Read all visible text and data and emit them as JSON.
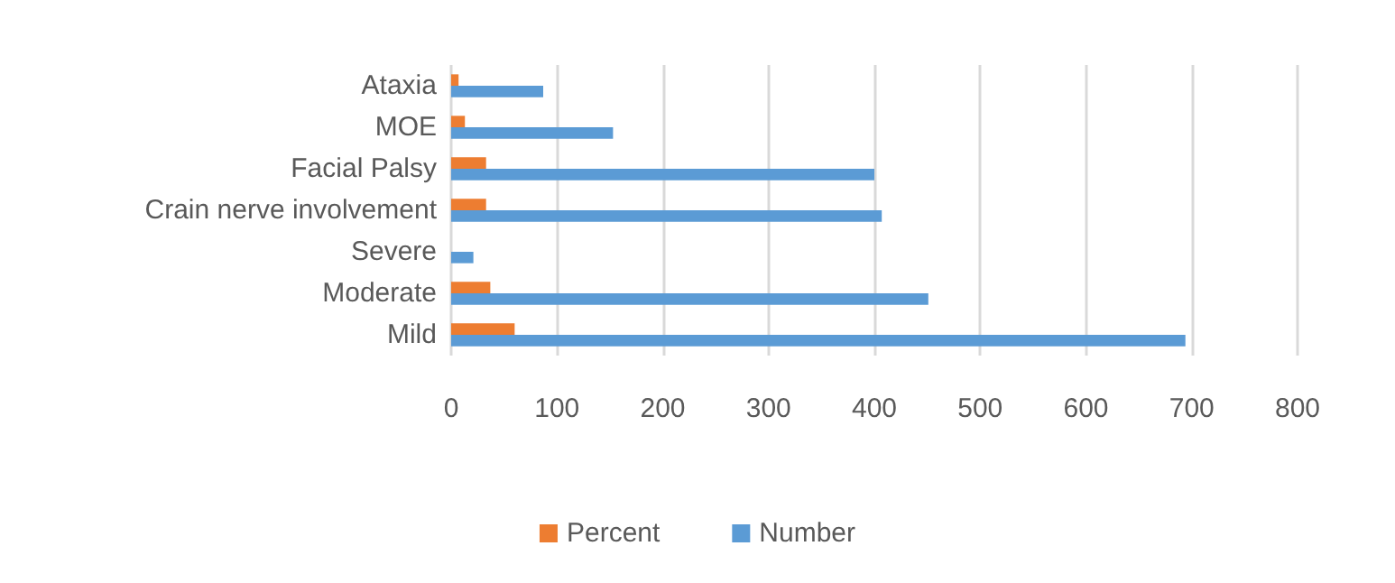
{
  "chart_data": {
    "type": "bar",
    "orientation": "horizontal",
    "categories": [
      "Ataxia",
      "MOE",
      "Facial Palsy",
      "Crain nerve involvement",
      "Severe",
      "Moderate",
      "Mild"
    ],
    "series": [
      {
        "name": "Percent",
        "color": "#ed7d31",
        "values": [
          7,
          13,
          33,
          33,
          0,
          37,
          60
        ]
      },
      {
        "name": "Number",
        "color": "#5b9bd5",
        "values": [
          87,
          153,
          400,
          407,
          21,
          451,
          694
        ]
      }
    ],
    "xlim": [
      0,
      800
    ],
    "xticks": [
      0,
      100,
      200,
      300,
      400,
      500,
      600,
      700,
      800
    ],
    "grid": "x",
    "legend": "bottom"
  }
}
